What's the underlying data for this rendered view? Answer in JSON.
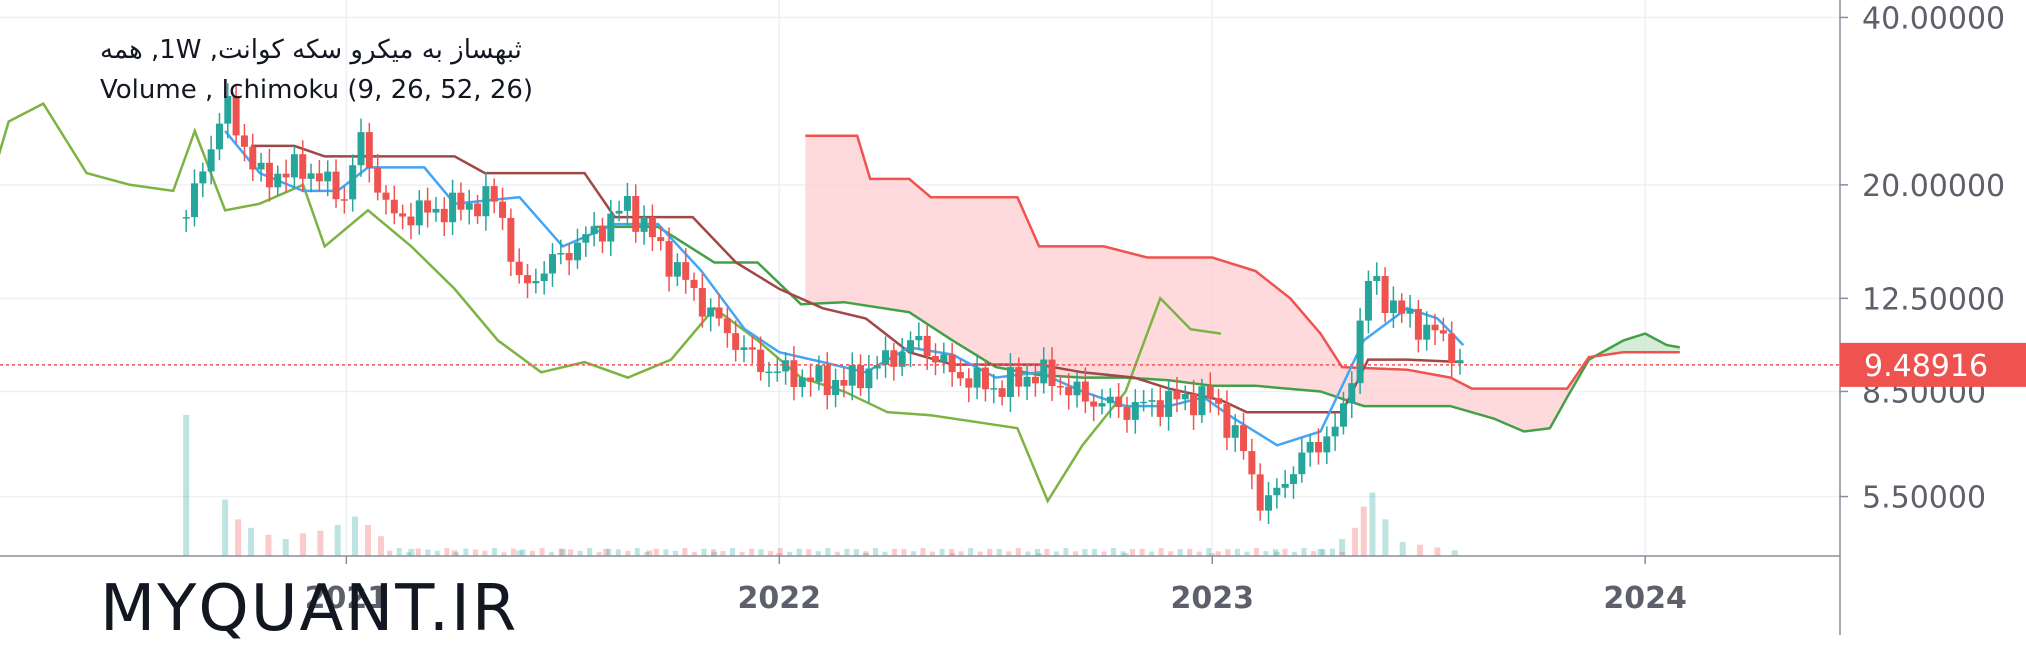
{
  "legend": {
    "line1": "ثبهساز به میکرو سکه کوانت, 1W, همه",
    "line2": "Volume , Ichimoku (9, 26, 52, 26)"
  },
  "watermark": "MYQUANT.IR",
  "last_price": "9.48916",
  "chart_data": {
    "type": "candlestick",
    "title": "",
    "indicators": [
      "Volume",
      "Ichimoku (9, 26, 52, 26)"
    ],
    "y_scale": "log",
    "ylim": [
      4.3,
      43
    ],
    "xlim": [
      2020.2,
      2024.45
    ],
    "y_ticks": [
      {
        "value": 40,
        "label": "40.00000"
      },
      {
        "value": 20,
        "label": "20.00000"
      },
      {
        "value": 12.5,
        "label": "12.50000"
      },
      {
        "value": 8.5,
        "label": "8.50000"
      },
      {
        "value": 5.5,
        "label": "5.50000"
      }
    ],
    "x_ticks": [
      {
        "value": 2021,
        "label": "2021"
      },
      {
        "value": 2022,
        "label": "2022"
      },
      {
        "value": 2023,
        "label": "2023"
      },
      {
        "value": 2024,
        "label": "2024"
      }
    ],
    "last_price": 9.48916,
    "colors": {
      "up": "#26a69a",
      "down": "#ef5350",
      "tenkan": "#42a5f5",
      "kijun": "#a04848",
      "chikou": "#7cb342",
      "span_a": "#43a047",
      "span_b": "#ef5350",
      "cloud_bull": "#c8e6c9",
      "cloud_bear": "#ffcdd2"
    },
    "price_series": {
      "x_range": [
        2020.63,
        2023.58
      ],
      "anchors": [
        [
          2020.63,
          17.5
        ],
        [
          2020.72,
          28
        ],
        [
          2020.8,
          20.5
        ],
        [
          2020.9,
          21.5
        ],
        [
          2021.0,
          19
        ],
        [
          2021.03,
          24.5
        ],
        [
          2021.1,
          17.5
        ],
        [
          2021.3,
          18.5
        ],
        [
          2021.35,
          19
        ],
        [
          2021.4,
          13
        ],
        [
          2021.5,
          15
        ],
        [
          2021.6,
          17
        ],
        [
          2021.65,
          18.5
        ],
        [
          2021.75,
          14.5
        ],
        [
          2021.85,
          11.5
        ],
        [
          2021.95,
          9.5
        ],
        [
          2022.05,
          9.0
        ],
        [
          2022.15,
          8.8
        ],
        [
          2022.25,
          9.7
        ],
        [
          2022.32,
          10.5
        ],
        [
          2022.4,
          9.2
        ],
        [
          2022.5,
          8.6
        ],
        [
          2022.6,
          9.2
        ],
        [
          2022.7,
          8.3
        ],
        [
          2022.8,
          7.9
        ],
        [
          2022.9,
          8.2
        ],
        [
          2023.0,
          8.3
        ],
        [
          2023.07,
          6.7
        ],
        [
          2023.12,
          5.2
        ],
        [
          2023.2,
          6.4
        ],
        [
          2023.3,
          7.5
        ],
        [
          2023.36,
          13.5
        ],
        [
          2023.45,
          11.5
        ],
        [
          2023.52,
          10.8
        ],
        [
          2023.58,
          9.48916
        ]
      ]
    },
    "tenkan_sen": [
      [
        2020.72,
        25
      ],
      [
        2020.8,
        21
      ],
      [
        2020.9,
        19.5
      ],
      [
        2020.98,
        19.5
      ],
      [
        2021.05,
        21.5
      ],
      [
        2021.18,
        21.5
      ],
      [
        2021.25,
        18.5
      ],
      [
        2021.4,
        19
      ],
      [
        2021.5,
        15.5
      ],
      [
        2021.62,
        17
      ],
      [
        2021.72,
        17
      ],
      [
        2021.82,
        14
      ],
      [
        2021.92,
        11
      ],
      [
        2022.0,
        10
      ],
      [
        2022.1,
        9.6
      ],
      [
        2022.2,
        9.2
      ],
      [
        2022.3,
        10.2
      ],
      [
        2022.4,
        9.9
      ],
      [
        2022.5,
        9.0
      ],
      [
        2022.6,
        9.2
      ],
      [
        2022.7,
        8.5
      ],
      [
        2022.8,
        8.0
      ],
      [
        2022.9,
        8.0
      ],
      [
        2022.98,
        8.3
      ],
      [
        2023.05,
        7.6
      ],
      [
        2023.15,
        6.8
      ],
      [
        2023.25,
        7.2
      ],
      [
        2023.35,
        10.5
      ],
      [
        2023.45,
        12.0
      ],
      [
        2023.52,
        11.5
      ],
      [
        2023.58,
        10.3
      ]
    ],
    "kijun_sen": [
      [
        2020.78,
        23.5
      ],
      [
        2020.88,
        23.5
      ],
      [
        2020.95,
        22.5
      ],
      [
        2021.1,
        22.5
      ],
      [
        2021.25,
        22.5
      ],
      [
        2021.32,
        21
      ],
      [
        2021.55,
        21
      ],
      [
        2021.62,
        17.5
      ],
      [
        2021.8,
        17.5
      ],
      [
        2021.9,
        14.5
      ],
      [
        2022.0,
        13
      ],
      [
        2022.1,
        12
      ],
      [
        2022.2,
        11.5
      ],
      [
        2022.3,
        10
      ],
      [
        2022.4,
        9.5
      ],
      [
        2022.5,
        9.5
      ],
      [
        2022.6,
        9.5
      ],
      [
        2022.7,
        9.2
      ],
      [
        2022.82,
        9.0
      ],
      [
        2022.9,
        8.6
      ],
      [
        2023.02,
        8.2
      ],
      [
        2023.08,
        7.8
      ],
      [
        2023.3,
        7.8
      ],
      [
        2023.36,
        9.7
      ],
      [
        2023.45,
        9.7
      ],
      [
        2023.58,
        9.6
      ]
    ],
    "chikou_span": [
      [
        2020.15,
        17
      ],
      [
        2020.22,
        26
      ],
      [
        2020.3,
        28
      ],
      [
        2020.4,
        21
      ],
      [
        2020.5,
        20
      ],
      [
        2020.6,
        19.5
      ],
      [
        2020.65,
        25
      ],
      [
        2020.72,
        18
      ],
      [
        2020.8,
        18.5
      ],
      [
        2020.9,
        20
      ],
      [
        2020.95,
        15.5
      ],
      [
        2021.05,
        18
      ],
      [
        2021.15,
        15.5
      ],
      [
        2021.25,
        13
      ],
      [
        2021.35,
        10.5
      ],
      [
        2021.45,
        9.2
      ],
      [
        2021.55,
        9.6
      ],
      [
        2021.65,
        9.0
      ],
      [
        2021.75,
        9.7
      ],
      [
        2021.85,
        12.0
      ],
      [
        2021.95,
        10.5
      ],
      [
        2022.05,
        9.0
      ],
      [
        2022.15,
        8.5
      ],
      [
        2022.25,
        7.8
      ],
      [
        2022.35,
        7.7
      ],
      [
        2022.45,
        7.5
      ],
      [
        2022.55,
        7.3
      ],
      [
        2022.62,
        5.4
      ],
      [
        2022.7,
        6.8
      ],
      [
        2022.8,
        8.5
      ],
      [
        2022.88,
        12.5
      ],
      [
        2022.95,
        11.0
      ],
      [
        2023.02,
        10.8
      ]
    ],
    "senkou_span_a": [
      [
        2021.57,
        16.8
      ],
      [
        2021.72,
        16.8
      ],
      [
        2021.85,
        14.5
      ],
      [
        2021.95,
        14.5
      ],
      [
        2022.05,
        12.2
      ],
      [
        2022.15,
        12.3
      ],
      [
        2022.3,
        11.8
      ],
      [
        2022.4,
        10.5
      ],
      [
        2022.5,
        9.4
      ],
      [
        2022.6,
        9.1
      ],
      [
        2022.7,
        9.0
      ],
      [
        2022.8,
        9.0
      ],
      [
        2022.9,
        8.9
      ],
      [
        2023.0,
        8.7
      ],
      [
        2023.1,
        8.7
      ],
      [
        2023.25,
        8.5
      ],
      [
        2023.35,
        8.0
      ],
      [
        2023.45,
        8.0
      ],
      [
        2023.55,
        8.0
      ],
      [
        2023.65,
        7.6
      ],
      [
        2023.72,
        7.2
      ],
      [
        2023.78,
        7.3
      ],
      [
        2023.82,
        8.3
      ],
      [
        2023.87,
        9.7
      ],
      [
        2023.95,
        10.5
      ],
      [
        2024.0,
        10.8
      ],
      [
        2024.05,
        10.3
      ],
      [
        2024.08,
        10.2
      ]
    ],
    "senkou_span_b": [
      [
        2022.06,
        24.5
      ],
      [
        2022.18,
        24.5
      ],
      [
        2022.21,
        20.5
      ],
      [
        2022.3,
        20.5
      ],
      [
        2022.35,
        19.0
      ],
      [
        2022.55,
        19.0
      ],
      [
        2022.6,
        15.5
      ],
      [
        2022.75,
        15.5
      ],
      [
        2022.85,
        14.8
      ],
      [
        2023.0,
        14.8
      ],
      [
        2023.1,
        14.0
      ],
      [
        2023.18,
        12.5
      ],
      [
        2023.25,
        10.8
      ],
      [
        2023.3,
        9.4
      ],
      [
        2023.45,
        9.3
      ],
      [
        2023.55,
        9.0
      ],
      [
        2023.6,
        8.6
      ],
      [
        2023.75,
        8.6
      ],
      [
        2023.82,
        8.6
      ],
      [
        2023.87,
        9.8
      ],
      [
        2023.95,
        10.0
      ],
      [
        2024.08,
        10.0
      ]
    ],
    "volume": {
      "y_max": 1.0,
      "bars": [
        [
          2020.63,
          1.0,
          "up"
        ],
        [
          2020.72,
          0.4,
          "up"
        ],
        [
          2020.75,
          0.26,
          "down"
        ],
        [
          2020.78,
          0.2,
          "up"
        ],
        [
          2020.82,
          0.15,
          "down"
        ],
        [
          2020.86,
          0.12,
          "up"
        ],
        [
          2020.9,
          0.16,
          "down"
        ],
        [
          2020.94,
          0.18,
          "down"
        ],
        [
          2020.98,
          0.22,
          "up"
        ],
        [
          2021.02,
          0.28,
          "up"
        ],
        [
          2021.05,
          0.22,
          "down"
        ],
        [
          2021.08,
          0.14,
          "down"
        ],
        [
          2021.15,
          0.05,
          "up"
        ],
        [
          2021.25,
          0.04,
          "down"
        ],
        [
          2021.4,
          0.04,
          "up"
        ],
        [
          2021.5,
          0.05,
          "up"
        ],
        [
          2021.6,
          0.05,
          "down"
        ],
        [
          2021.7,
          0.04,
          "down"
        ],
        [
          2021.85,
          0.03,
          "up"
        ],
        [
          2022.0,
          0.02,
          "down"
        ],
        [
          2022.2,
          0.02,
          "up"
        ],
        [
          2022.4,
          0.02,
          "down"
        ],
        [
          2022.6,
          0.02,
          "up"
        ],
        [
          2022.8,
          0.02,
          "up"
        ],
        [
          2023.0,
          0.02,
          "down"
        ],
        [
          2023.15,
          0.03,
          "up"
        ],
        [
          2023.25,
          0.05,
          "up"
        ],
        [
          2023.3,
          0.12,
          "up"
        ],
        [
          2023.33,
          0.2,
          "down"
        ],
        [
          2023.35,
          0.35,
          "down"
        ],
        [
          2023.37,
          0.45,
          "up"
        ],
        [
          2023.4,
          0.26,
          "up"
        ],
        [
          2023.44,
          0.1,
          "up"
        ],
        [
          2023.48,
          0.08,
          "down"
        ],
        [
          2023.52,
          0.06,
          "down"
        ],
        [
          2023.56,
          0.04,
          "up"
        ]
      ]
    }
  }
}
